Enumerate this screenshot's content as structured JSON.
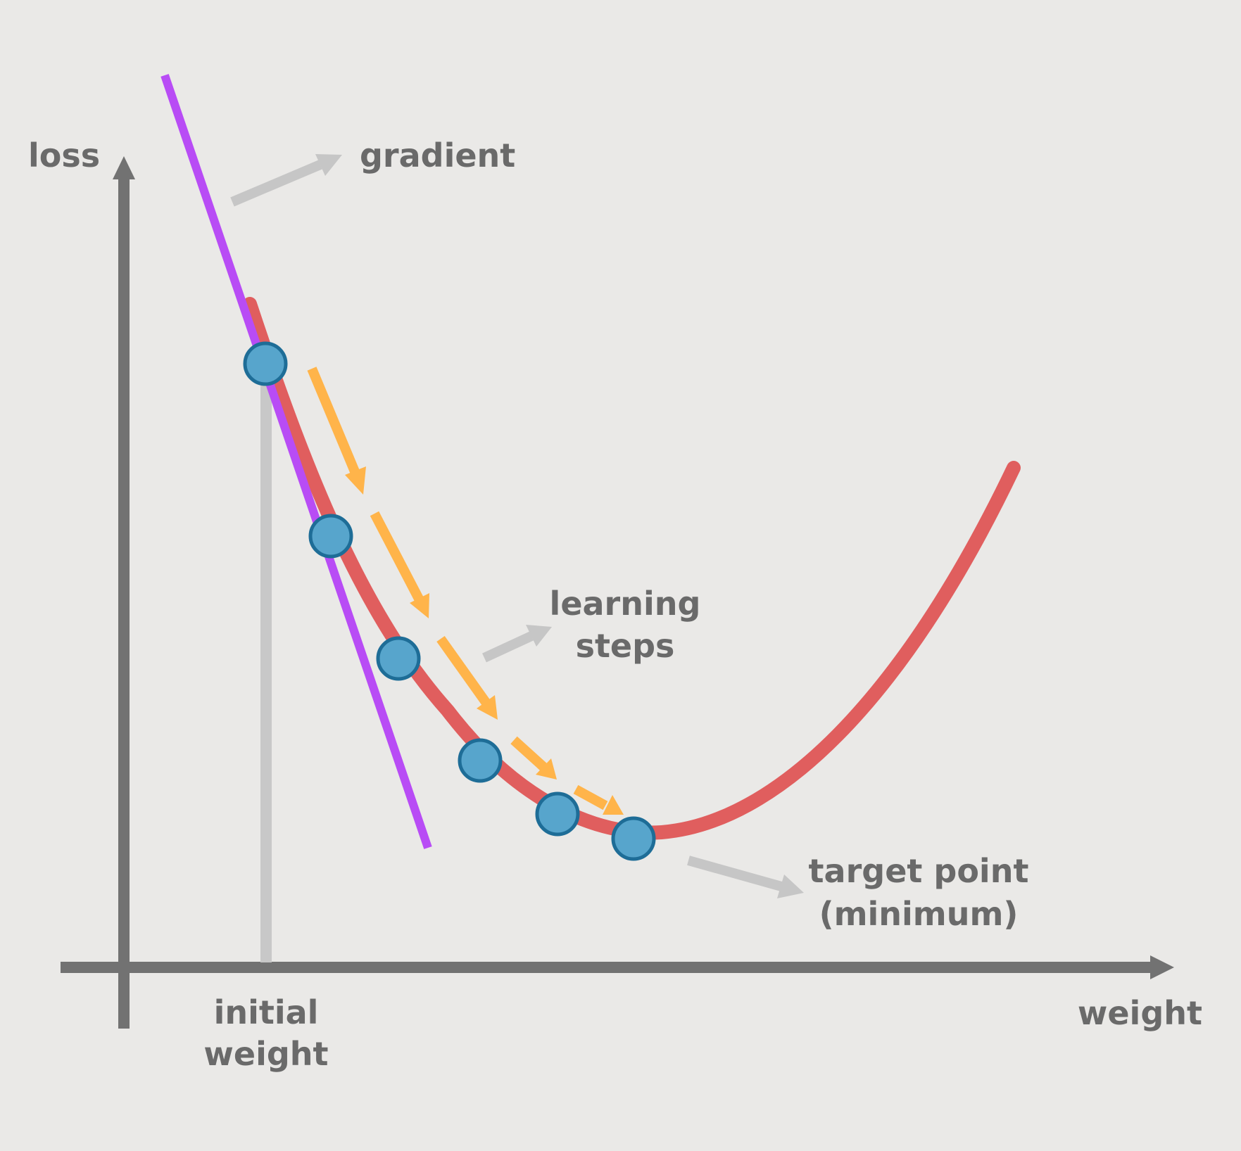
{
  "labels": {
    "y_axis": "loss",
    "x_axis": "weight",
    "gradient": "gradient",
    "learning_steps_line1": "learning",
    "learning_steps_line2": "steps",
    "target_line1": "target point",
    "target_line2": "(minimum)",
    "initial_line1": "initial",
    "initial_line2": "weight"
  },
  "colors": {
    "background": "#eae9e7",
    "axis": "#727272",
    "text": "#6a6a6a",
    "loss_curve": "#e05e5e",
    "gradient_line": "#b84cf5",
    "step_arrow": "#ffb44a",
    "pointer_arrow": "#c6c6c6",
    "point_fill": "#57a5cc",
    "point_stroke": "#1e6d97"
  }
}
